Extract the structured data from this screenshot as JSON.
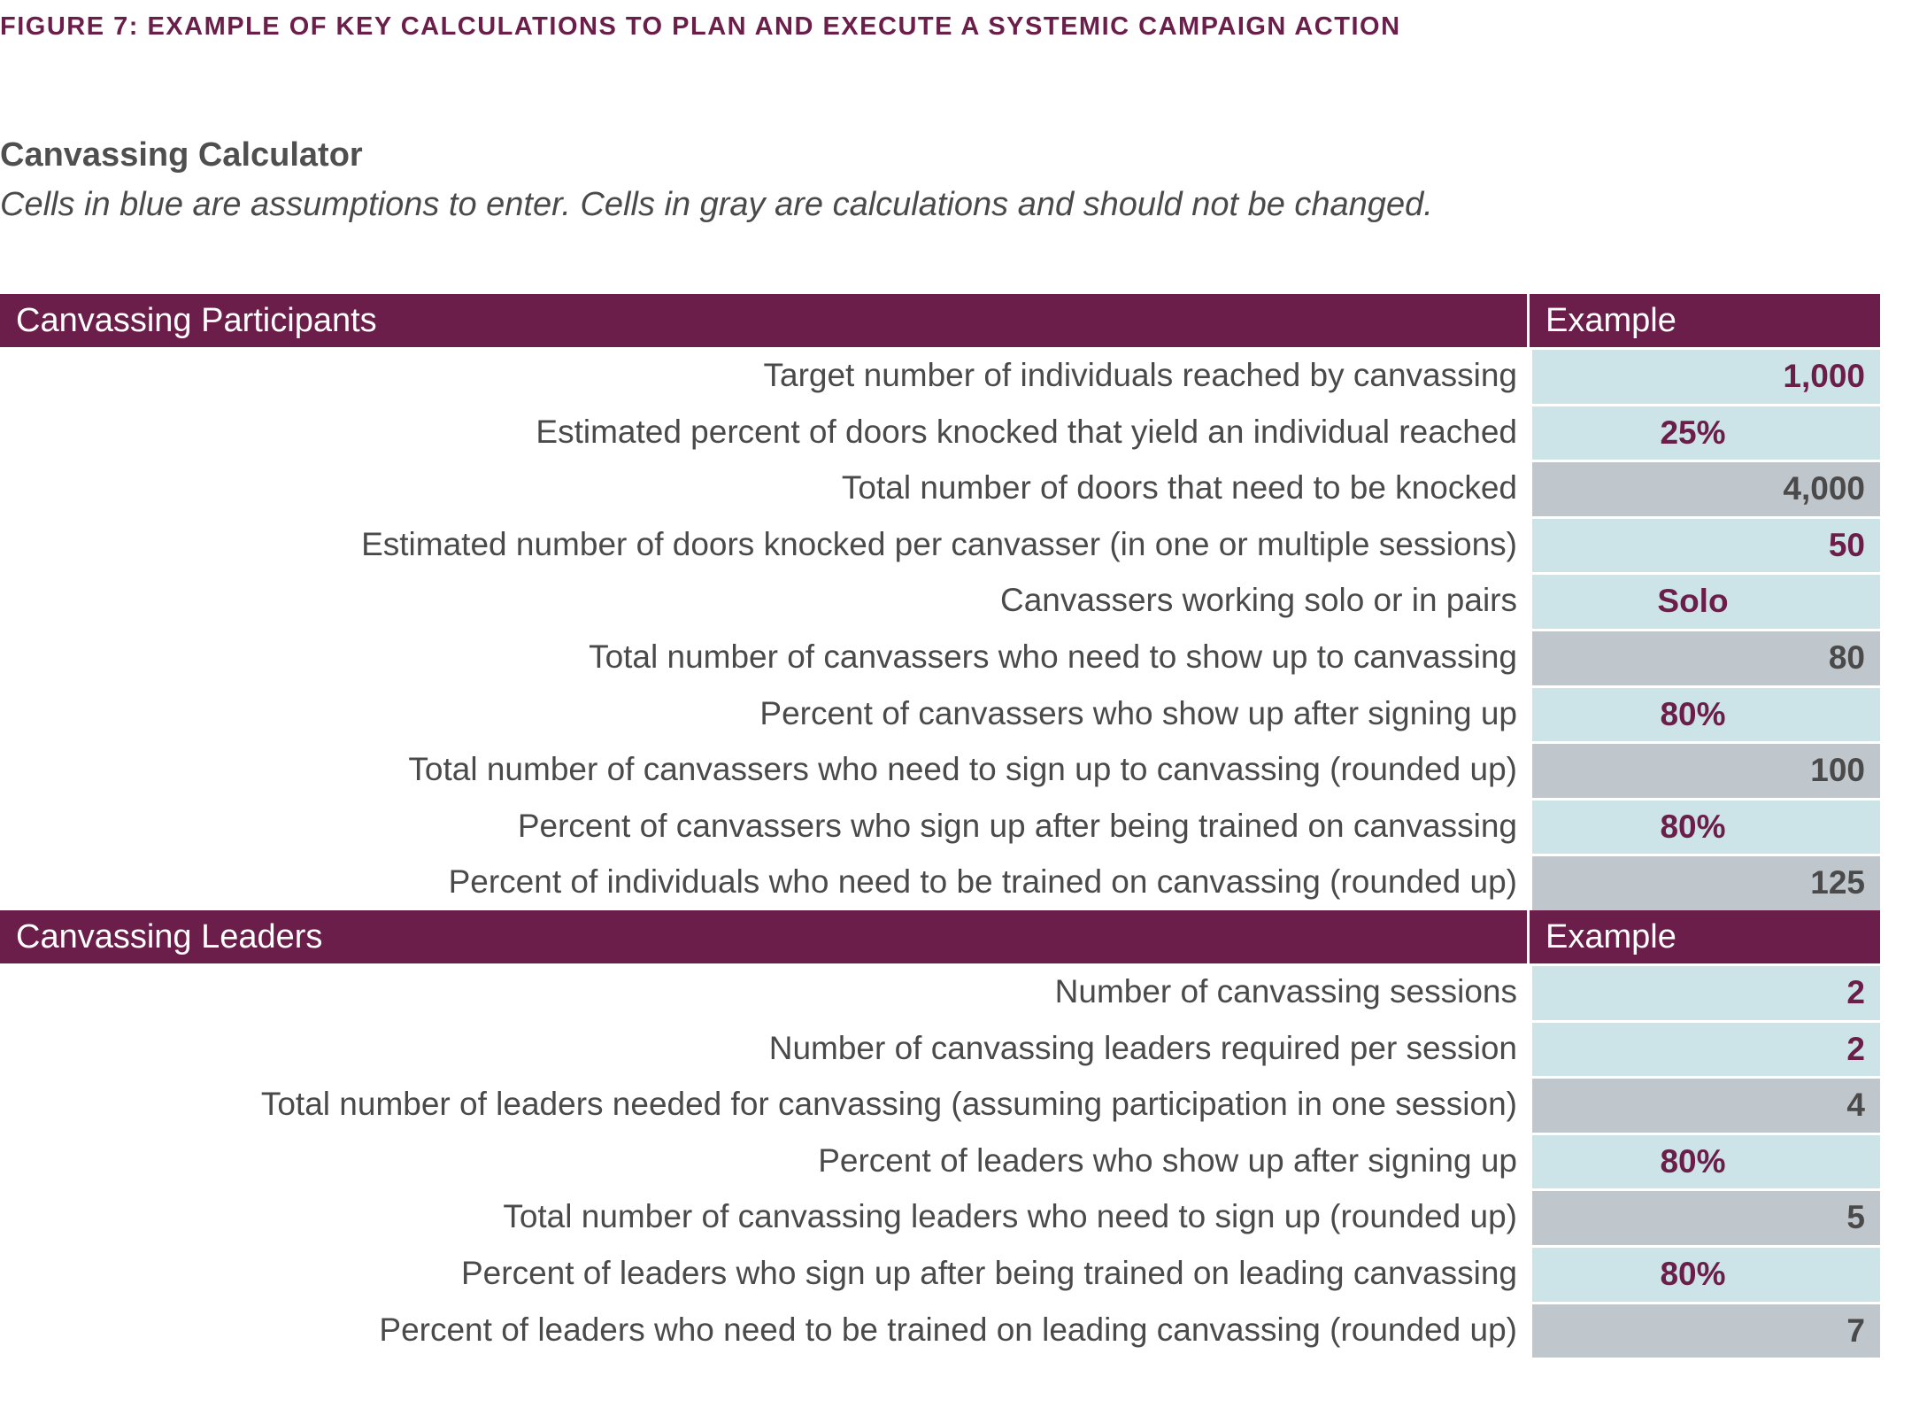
{
  "figure_title": "FIGURE 7: EXAMPLE OF KEY CALCULATIONS TO PLAN AND EXECUTE A SYSTEMIC CAMPAIGN ACTION",
  "calculator_title": "Canvassing Calculator",
  "calculator_subtitle": "Cells in blue are assumptions to enter. Cells in gray are calculations and should not be changed.",
  "colors": {
    "header": "#6b1e4a",
    "input_cell": "#cce4e8",
    "calc_cell": "#bfc6cc",
    "text": "#4a4a4a"
  },
  "sections": [
    {
      "title": "Canvassing Participants",
      "column": "Example",
      "rows": [
        {
          "label": "Target number of individuals reached by canvassing",
          "value": "1,000",
          "kind": "input",
          "align": "right"
        },
        {
          "label": "Estimated percent of doors knocked that yield an individual reached",
          "value": "25%",
          "kind": "input",
          "align": "center"
        },
        {
          "label": "Total number of doors that need to be knocked",
          "value": "4,000",
          "kind": "calc",
          "align": "right"
        },
        {
          "label": "Estimated number of doors knocked per canvasser (in one or multiple sessions)",
          "value": "50",
          "kind": "input",
          "align": "right"
        },
        {
          "label": "Canvassers working solo or in pairs",
          "value": "Solo",
          "kind": "input",
          "align": "center"
        },
        {
          "label": "Total number of canvassers who need to show up to canvassing",
          "value": "80",
          "kind": "calc",
          "align": "right"
        },
        {
          "label": "Percent of canvassers who show up after signing up",
          "value": "80%",
          "kind": "input",
          "align": "center"
        },
        {
          "label": "Total number of canvassers who need to sign up to canvassing (rounded up)",
          "value": "100",
          "kind": "calc",
          "align": "right"
        },
        {
          "label": "Percent of canvassers who sign up after being trained on canvassing",
          "value": "80%",
          "kind": "input",
          "align": "center"
        },
        {
          "label": "Percent of individuals who need to be trained on canvassing (rounded up)",
          "value": "125",
          "kind": "calc",
          "align": "right"
        }
      ]
    },
    {
      "title": "Canvassing Leaders",
      "column": "Example",
      "rows": [
        {
          "label": "Number of canvassing sessions",
          "value": "2",
          "kind": "input",
          "align": "right"
        },
        {
          "label": "Number of canvassing leaders required per session",
          "value": "2",
          "kind": "input",
          "align": "right"
        },
        {
          "label": "Total number of leaders needed for canvassing (assuming participation in one session)",
          "value": "4",
          "kind": "calc",
          "align": "right"
        },
        {
          "label": "Percent of leaders who show up after signing up",
          "value": "80%",
          "kind": "input",
          "align": "center"
        },
        {
          "label": "Total number of canvassing leaders who need to sign up (rounded up)",
          "value": "5",
          "kind": "calc",
          "align": "right"
        },
        {
          "label": "Percent of leaders who sign up after being trained on leading canvassing",
          "value": "80%",
          "kind": "input",
          "align": "center"
        },
        {
          "label": "Percent of leaders who need to be trained on leading canvassing (rounded up)",
          "value": "7",
          "kind": "calc",
          "align": "right"
        }
      ]
    }
  ]
}
